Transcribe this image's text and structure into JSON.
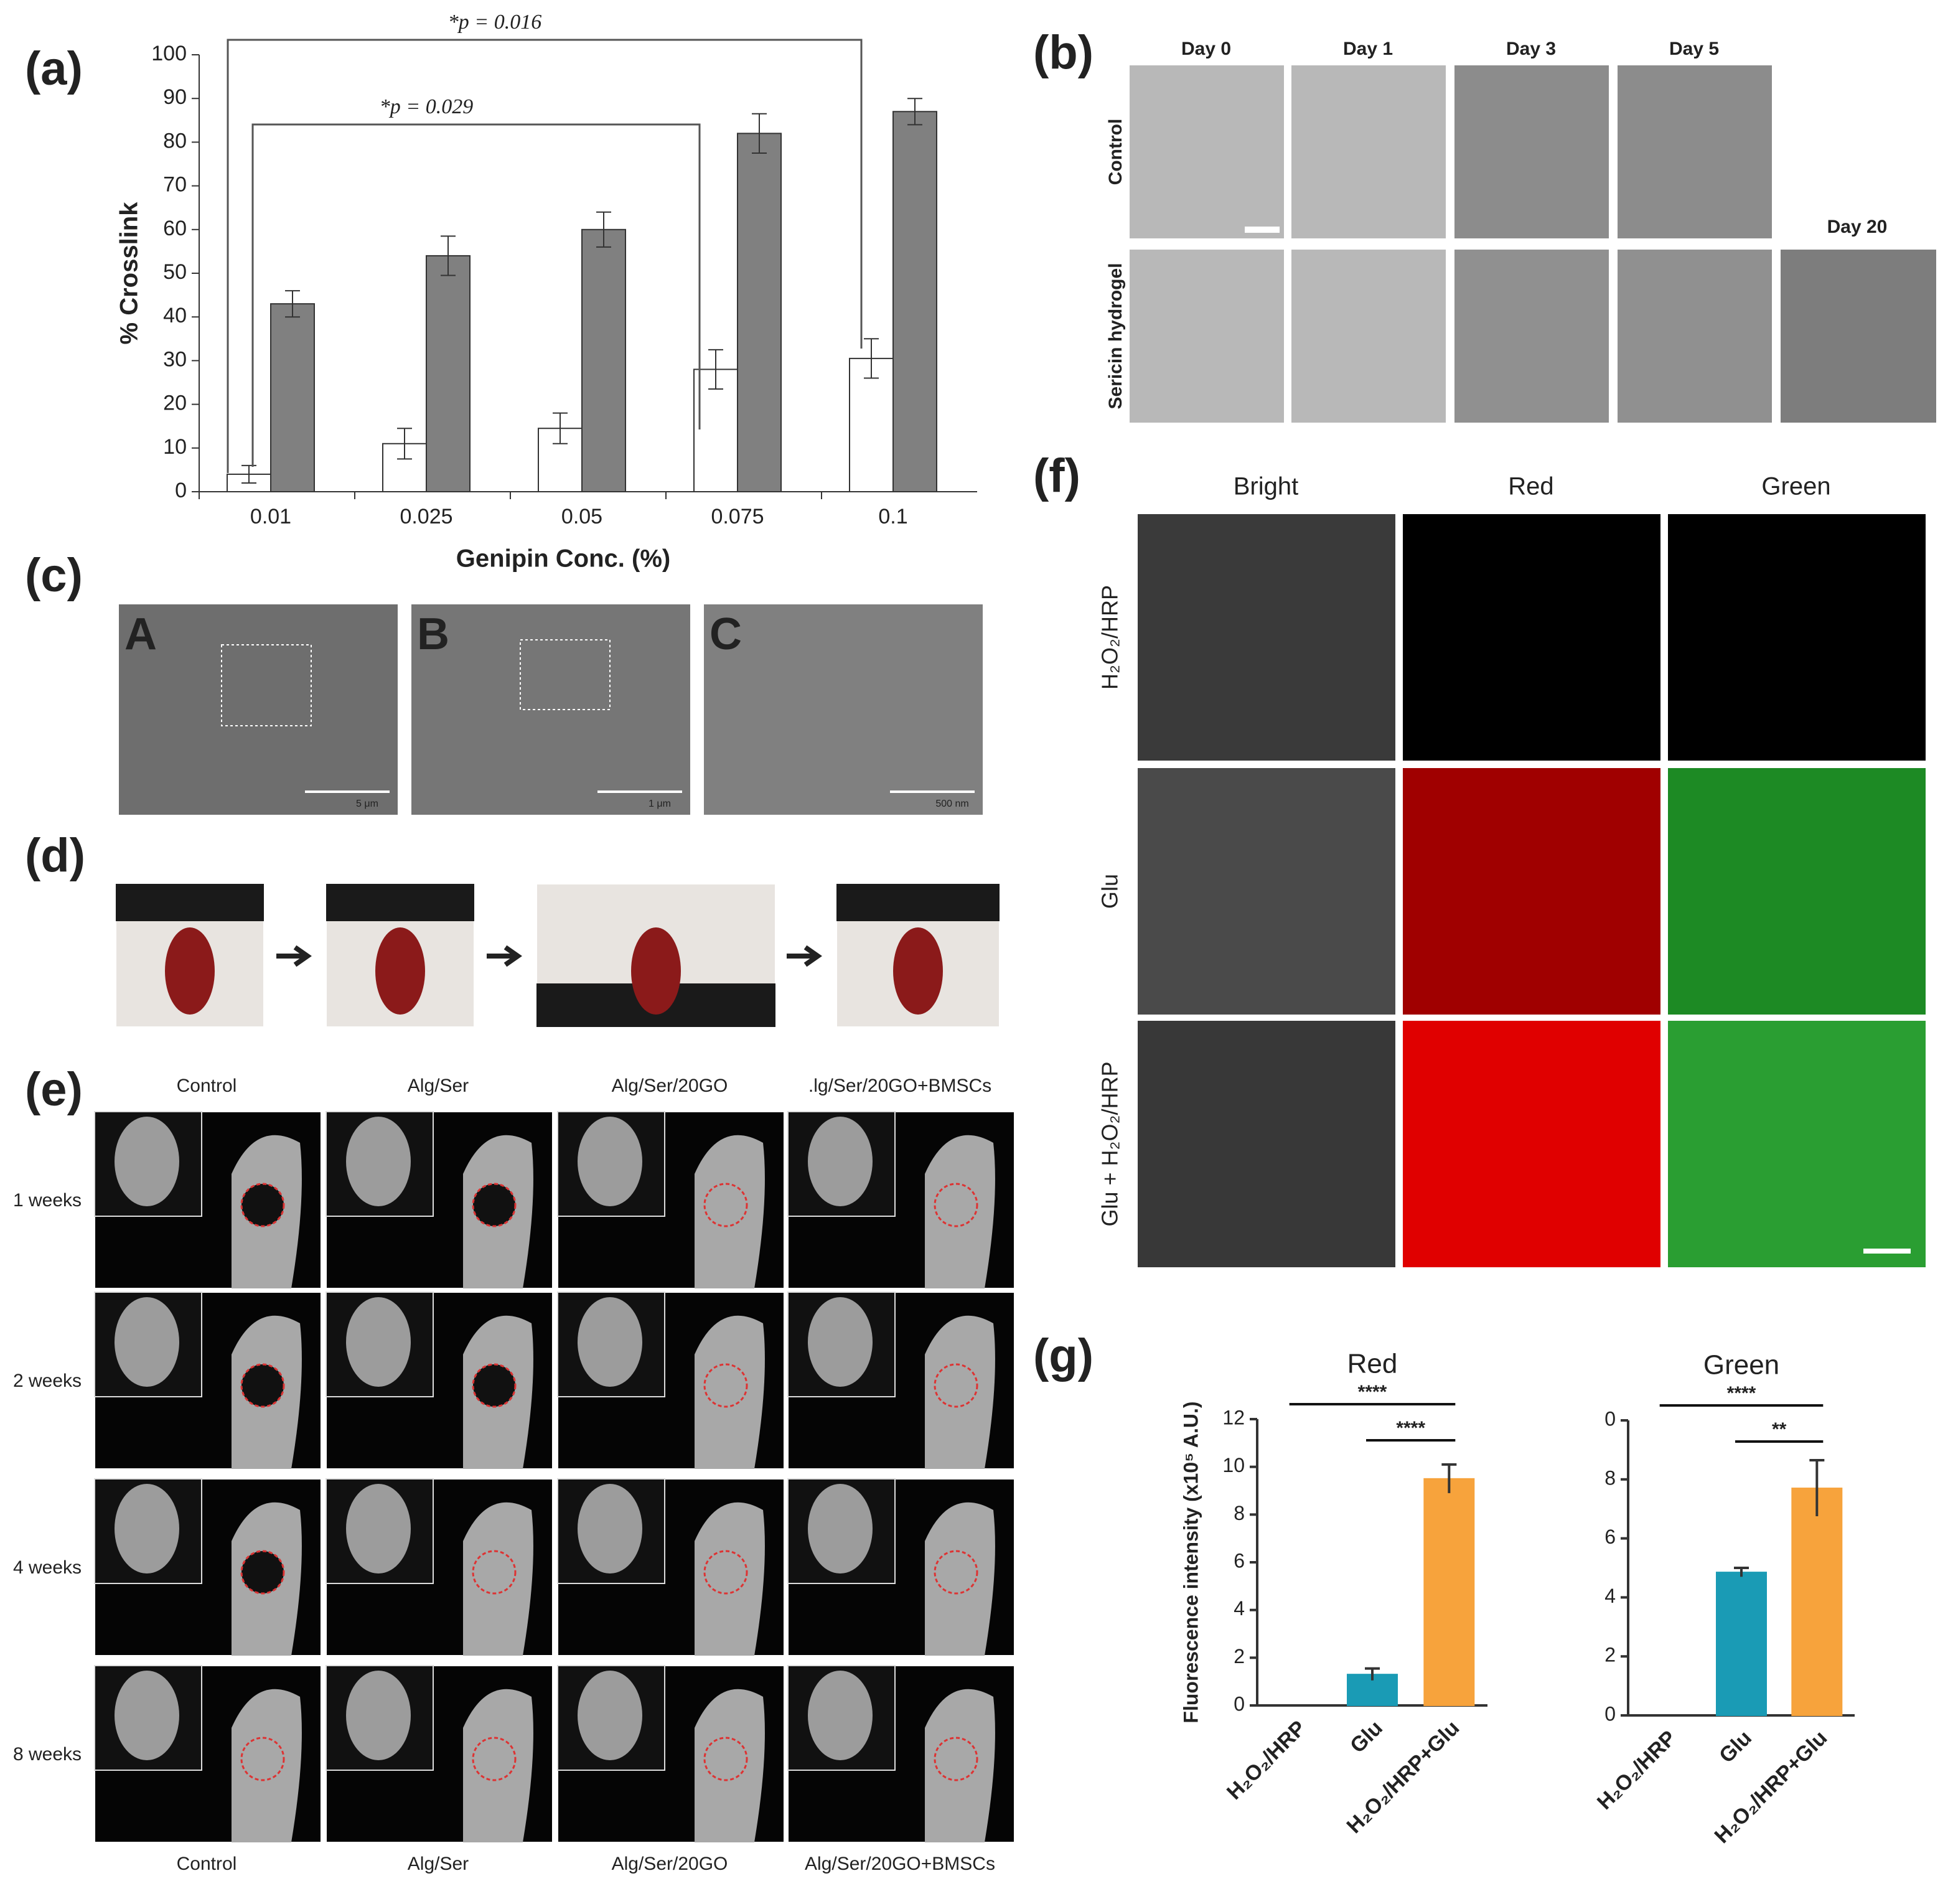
{
  "chart_data": [
    {
      "type": "bar",
      "xlabel": "Genipin Conc. (%)",
      "ylabel": "% Crosslink",
      "categories": [
        "0.01",
        "0.025",
        "0.05",
        "0.075",
        "0.1"
      ],
      "series": [
        {
          "color": "#ffffff",
          "values": [
            4,
            11,
            14.5,
            28,
            30.5
          ],
          "errors": [
            2,
            3.5,
            3.5,
            4.5,
            4.5
          ]
        },
        {
          "color": "#808080",
          "values": [
            43,
            54,
            60,
            82,
            87
          ],
          "errors": [
            3,
            4.5,
            4,
            4.5,
            3
          ]
        }
      ],
      "ylim": [
        0,
        100
      ],
      "yticks": [
        0,
        10,
        20,
        30,
        40,
        50,
        60,
        70,
        80,
        90,
        100
      ],
      "annotations": [
        "*p = 0.016",
        "*p = 0.029"
      ]
    },
    {
      "type": "bar",
      "title": "Red",
      "ylabel": "Fluorescence intensity (x10⁵ A.U.)",
      "categories": [
        "H₂O₂/HRP",
        "Glu",
        "H₂O₂/HRP+Glu"
      ],
      "values": [
        0,
        1.3,
        9.5
      ],
      "errors": [
        0,
        0.25,
        0.6
      ],
      "colors": [
        "#1a9bb5",
        "#1a9bb5",
        "#f7a33c"
      ],
      "ylim": [
        0,
        12
      ],
      "yticks": [
        0,
        2,
        4,
        6,
        8,
        10,
        12
      ],
      "annotations": [
        "****",
        "****"
      ]
    },
    {
      "type": "bar",
      "title": "Green",
      "categories": [
        "H₂O₂/HRP",
        "Glu",
        "H₂O₂/HRP+Glu"
      ],
      "values": [
        0,
        4.85,
        7.7
      ],
      "errors": [
        0,
        0.15,
        0.95
      ],
      "colors": [
        "#1a9bb5",
        "#1a9bb5",
        "#f7a33c"
      ],
      "ylim": [
        0,
        10
      ],
      "yticks": [
        0,
        2,
        4,
        6,
        8,
        {
          "value": 10,
          "label": "0"
        }
      ],
      "annotations": [
        "****",
        "**"
      ]
    }
  ],
  "panel_labels": [
    "(a)",
    "(b)",
    "(c)",
    "(d)",
    "(e)",
    "(f)",
    "(g)"
  ],
  "panel_b": {
    "columns": [
      "Day 0",
      "Day 1",
      "Day 3",
      "Day 5",
      "Day 20"
    ],
    "rows": [
      "Control",
      "Sericin hydrogel"
    ]
  },
  "panel_c": {
    "labels": [
      "A",
      "B",
      "C"
    ],
    "scale_bars": [
      "5 μm",
      "1 μm",
      "500 nm"
    ]
  },
  "panel_e": {
    "columns_top": [
      "Control",
      "Alg/Ser",
      "Alg/Ser/20GO",
      ".lg/Ser/20GO+BMSCs"
    ],
    "rows": [
      "1 weeks",
      "2 weeks",
      "4 weeks",
      "8 weeks"
    ],
    "columns_bottom": [
      "Control",
      "Alg/Ser",
      "Alg/Ser/20GO",
      "Alg/Ser/20GO+BMSCs"
    ]
  },
  "panel_f": {
    "columns": [
      "Bright",
      "Red",
      "Green"
    ],
    "rows": [
      "H₂O₂/HRP",
      "Glu",
      "Glu + H₂O₂/HRP"
    ]
  }
}
